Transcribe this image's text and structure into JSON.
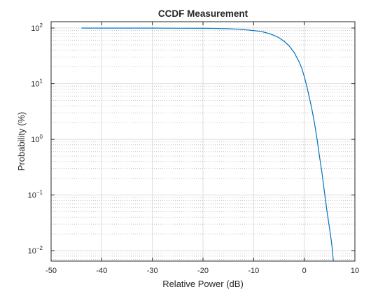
{
  "chart_data": {
    "type": "line",
    "title": "CCDF Measurement",
    "xlabel": "Relative Power (dB)",
    "ylabel": "Probability (%)",
    "xlim": [
      -50,
      10
    ],
    "ylim": [
      0.0065,
      130
    ],
    "yscale": "log",
    "grid": true,
    "minor_grid": true,
    "x_ticks": [
      -50,
      -40,
      -30,
      -20,
      -10,
      0,
      10
    ],
    "y_tick_exponents": [
      2,
      1,
      0,
      -1,
      -2
    ],
    "series": [
      {
        "color": "#0072BD",
        "x": [
          -44,
          -40,
          -35,
          -30,
          -25,
          -20,
          -17,
          -15,
          -13,
          -11,
          -9,
          -8,
          -7,
          -6,
          -5,
          -4,
          -3,
          -2,
          -1,
          -0.5,
          0,
          0.5,
          1,
          1.5,
          2,
          2.5,
          3,
          3.5,
          4,
          4.5,
          5,
          5.3,
          5.5,
          5.6,
          5.7,
          5.75
        ],
        "y": [
          99.9,
          99.9,
          99.8,
          99.7,
          99.3,
          99.0,
          98.3,
          97.0,
          95.0,
          92.0,
          88.0,
          84.5,
          80.0,
          74.0,
          67.0,
          58.0,
          48.0,
          36.5,
          24.5,
          19.0,
          13.5,
          9.0,
          5.7,
          3.5,
          2.0,
          1.05,
          0.5,
          0.25,
          0.11,
          0.05,
          0.025,
          0.016,
          0.0115,
          0.009,
          0.0072,
          0.0065
        ]
      }
    ]
  }
}
